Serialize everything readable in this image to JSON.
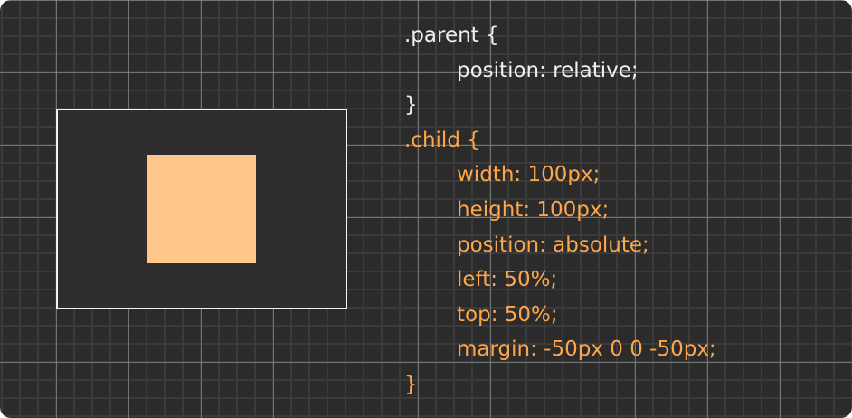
{
  "colors": {
    "background": "#2b2b2b",
    "parent_border": "#f2f2f2",
    "child_fill": "#ffc78a",
    "parent_code": "#f0f0f0",
    "child_code": "#ffa54a"
  },
  "code": {
    "parent": [
      ".parent {",
      "position: relative;",
      "}"
    ],
    "child": [
      ".child {",
      "width: 100px;",
      "height: 100px;",
      "position: absolute;",
      "left: 50%;",
      "top: 50%;",
      "margin: -50px 0 0 -50px;",
      "}"
    ]
  }
}
